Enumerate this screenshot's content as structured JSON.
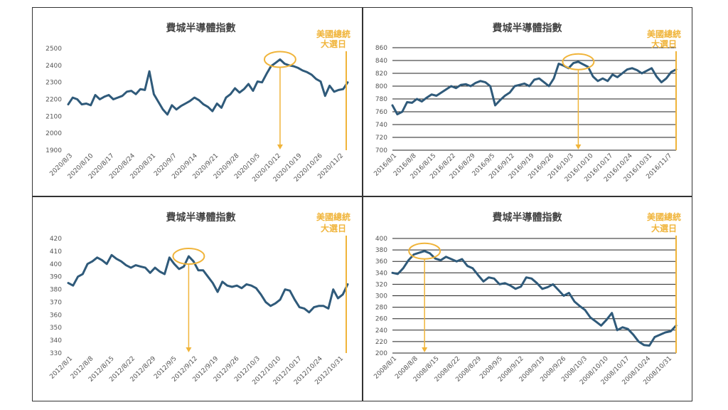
{
  "chart_data": [
    {
      "type": "line",
      "title": "費城半導體指數",
      "annotation": [
        "美國總統",
        "大選日"
      ],
      "x_labels": [
        "2020/8/3",
        "2020/8/10",
        "2020/8/17",
        "2020/8/24",
        "2020/8/31",
        "2020/9/7",
        "2020/9/14",
        "2020/9/21",
        "2020/9/28",
        "2020/10/5",
        "2020/10/12",
        "2020/10/19",
        "2020/10/26",
        "2020/11/2"
      ],
      "ylim": [
        1900,
        2500
      ],
      "yticks": [
        1900,
        2000,
        2100,
        2200,
        2300,
        2400,
        2500
      ],
      "grid": false,
      "series": [
        {
          "values": [
            2170,
            2210,
            2200,
            2170,
            2175,
            2165,
            2225,
            2200,
            2215,
            2225,
            2200,
            2210,
            2220,
            2245,
            2250,
            2230,
            2260,
            2255,
            2365,
            2230,
            2185,
            2140,
            2110,
            2165,
            2140,
            2160,
            2175,
            2190,
            2210,
            2195,
            2170,
            2155,
            2130,
            2175,
            2150,
            2210,
            2230,
            2265,
            2240,
            2260,
            2290,
            2250,
            2305,
            2300,
            2350,
            2395,
            2415,
            2435,
            2410,
            2400,
            2395,
            2385,
            2370,
            2360,
            2345,
            2320,
            2305,
            2220,
            2280,
            2245,
            2255,
            2260,
            2300
          ]
        }
      ],
      "highlight_index": 47,
      "line_color": "#2f5a7a",
      "accent_color": "#f0b43a"
    },
    {
      "type": "line",
      "title": "費城半導體指數",
      "annotation": [
        "美國總統",
        "大選日"
      ],
      "x_labels": [
        "2016/8/1",
        "2016/8/8",
        "2016/8/15",
        "2016/8/22",
        "2016/8/29",
        "2016/9/5",
        "2016/9/12",
        "2016/9/19",
        "2016/9/26",
        "2016/10/3",
        "2016/10/10",
        "2016/10/17",
        "2016/10/24",
        "2016/10/31",
        "2016/11/7"
      ],
      "ylim": [
        700,
        860
      ],
      "yticks": [
        700,
        720,
        740,
        760,
        780,
        800,
        820,
        840,
        860
      ],
      "grid": true,
      "series": [
        {
          "values": [
            770,
            756,
            760,
            775,
            774,
            780,
            776,
            782,
            787,
            785,
            790,
            795,
            800,
            797,
            802,
            803,
            800,
            805,
            808,
            806,
            800,
            770,
            778,
            785,
            790,
            800,
            802,
            804,
            800,
            810,
            812,
            806,
            800,
            812,
            835,
            832,
            828,
            836,
            838,
            834,
            830,
            815,
            808,
            812,
            808,
            818,
            814,
            820,
            826,
            828,
            825,
            820,
            824,
            828,
            815,
            806,
            812,
            822,
            826
          ]
        }
      ],
      "highlight_index": 38,
      "line_color": "#2f5a7a",
      "accent_color": "#f0b43a"
    },
    {
      "type": "line",
      "title": "費城半導體指數",
      "annotation": [
        "美國總統",
        "大選日"
      ],
      "x_labels": [
        "2012/8/1",
        "2012/8/8",
        "2012/8/15",
        "2012/8/22",
        "2012/8/29",
        "2012/9/5",
        "2012/9/12",
        "2012/9/19",
        "2012/9/26",
        "2012/10/3",
        "2012/10/10",
        "2012/10/17",
        "2012/10/24",
        "2012/10/31"
      ],
      "ylim": [
        330,
        420
      ],
      "yticks": [
        330,
        340,
        350,
        360,
        370,
        380,
        390,
        400,
        410,
        420
      ],
      "grid": false,
      "series": [
        {
          "values": [
            385,
            383,
            390,
            392,
            400,
            402,
            405,
            403,
            400,
            407,
            404,
            402,
            399,
            397,
            399,
            398,
            397,
            393,
            397,
            394,
            392,
            405,
            400,
            396,
            398,
            406,
            402,
            395,
            395,
            390,
            385,
            378,
            386,
            383,
            382,
            383,
            381,
            384,
            383,
            381,
            376,
            370,
            367,
            369,
            372,
            380,
            379,
            372,
            366,
            365,
            362,
            366,
            367,
            367,
            365,
            380,
            373,
            376,
            384
          ]
        }
      ],
      "highlight_index": 25,
      "line_color": "#2f5a7a",
      "accent_color": "#f0b43a"
    },
    {
      "type": "line",
      "title": "費城半導體指數",
      "annotation": [
        "美國總統",
        "大選日"
      ],
      "x_labels": [
        "2008/8/1",
        "2008/8/8",
        "2008/8/15",
        "2008/8/22",
        "2008/8/29",
        "2008/9/5",
        "2008/9/12",
        "2008/9/19",
        "2008/9/26",
        "2008/10/3",
        "2008/10/10",
        "2008/10/17",
        "2008/10/24",
        "2008/10/31"
      ],
      "ylim": [
        200,
        400
      ],
      "yticks": [
        200,
        220,
        240,
        260,
        280,
        300,
        320,
        340,
        360,
        380,
        400
      ],
      "grid": true,
      "series": [
        {
          "values": [
            340,
            338,
            348,
            362,
            372,
            375,
            378,
            374,
            365,
            362,
            368,
            364,
            360,
            364,
            352,
            348,
            336,
            325,
            332,
            330,
            320,
            322,
            318,
            312,
            316,
            332,
            330,
            322,
            312,
            315,
            320,
            310,
            300,
            305,
            290,
            282,
            275,
            262,
            255,
            248,
            258,
            270,
            240,
            245,
            242,
            232,
            220,
            214,
            213,
            228,
            232,
            236,
            238,
            248
          ]
        }
      ],
      "highlight_index": 6,
      "line_color": "#2f5a7a",
      "accent_color": "#f0b43a"
    }
  ]
}
